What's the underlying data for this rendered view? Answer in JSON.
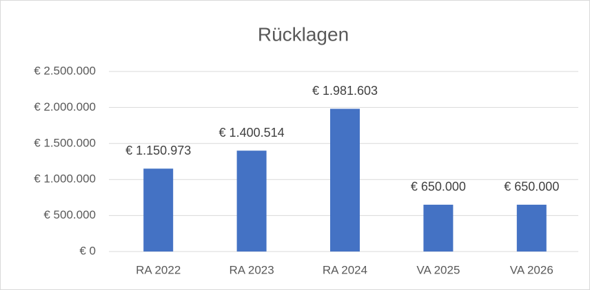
{
  "chart_data": {
    "type": "bar",
    "title": "Rücklagen",
    "categories": [
      "RA 2022",
      "RA 2023",
      "RA 2024",
      "VA 2025",
      "VA 2026"
    ],
    "values": [
      1150973,
      1400514,
      1981603,
      650000,
      650000
    ],
    "value_labels": [
      "€ 1.150.973",
      "€ 1.400.514",
      "€ 1.981.603",
      "€ 650.000",
      "€ 650.000"
    ],
    "color": "#4472c4",
    "ylim": [
      0,
      2500000
    ],
    "yticks": [
      {
        "value": 0,
        "label": "€ 0"
      },
      {
        "value": 500000,
        "label": "€ 500.000"
      },
      {
        "value": 1000000,
        "label": "€ 1.000.000"
      },
      {
        "value": 1500000,
        "label": "€ 1.500.000"
      },
      {
        "value": 2000000,
        "label": "€ 2.000.000"
      },
      {
        "value": 2500000,
        "label": "€ 2.500.000"
      }
    ],
    "grid": true
  }
}
